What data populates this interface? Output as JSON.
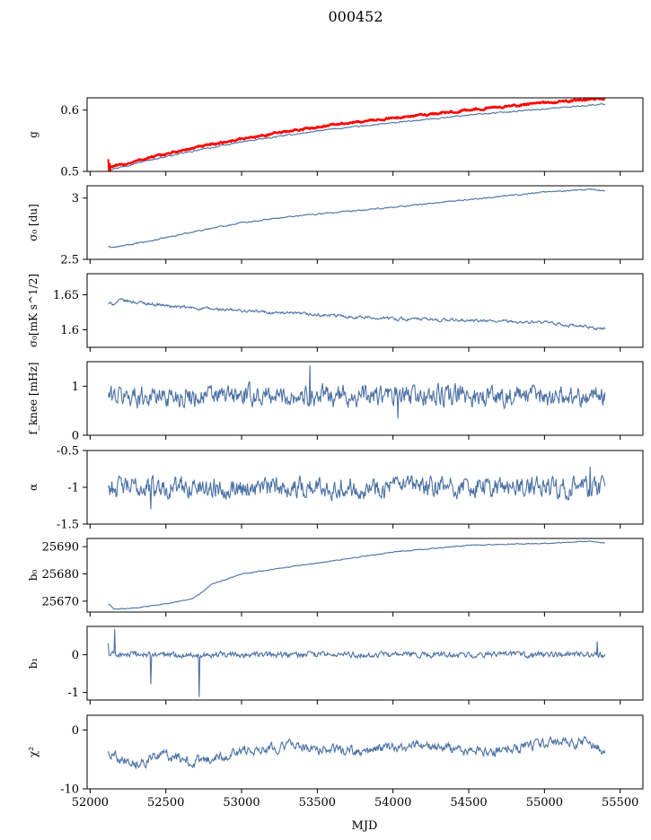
{
  "chart_data": {
    "type": "line",
    "title": "000452",
    "xlabel": "MJD",
    "xlim": [
      51980,
      55650
    ],
    "xticks": [
      52000,
      52500,
      53000,
      53500,
      54000,
      54500,
      55000,
      55500
    ],
    "x_range": [
      52120,
      55400
    ],
    "series_color": "#4c72a4",
    "overlay_color": "#ff0000",
    "panels": [
      {
        "key": "g",
        "ylabel": "g",
        "ylim": [
          0.5,
          0.62
        ],
        "yticks": [
          0.5,
          0.6
        ],
        "style": "trend",
        "points": [
          [
            52120,
            0.503
          ],
          [
            52200,
            0.507
          ],
          [
            52400,
            0.519
          ],
          [
            52700,
            0.534
          ],
          [
            53000,
            0.548
          ],
          [
            53300,
            0.559
          ],
          [
            53600,
            0.569
          ],
          [
            54000,
            0.579
          ],
          [
            54500,
            0.592
          ],
          [
            55000,
            0.602
          ],
          [
            55400,
            0.61
          ]
        ],
        "noise": 0.0008,
        "overlay": {
          "style": "trend",
          "points": [
            [
              52120,
              0.507
            ],
            [
              52200,
              0.51
            ],
            [
              52400,
              0.523
            ],
            [
              52700,
              0.539
            ],
            [
              53000,
              0.553
            ],
            [
              53300,
              0.565
            ],
            [
              53600,
              0.576
            ],
            [
              54000,
              0.587
            ],
            [
              54500,
              0.6
            ],
            [
              55000,
              0.612
            ],
            [
              55400,
              0.619
            ]
          ],
          "noise": 0.0012,
          "glitch": [
            [
              52120,
              0.52
            ],
            [
              52125,
              0.496
            ],
            [
              52130,
              0.513
            ],
            [
              52135,
              0.5
            ]
          ]
        }
      },
      {
        "key": "sigma0",
        "ylabel": "σ₀ [du]",
        "ylim": [
          2.5,
          3.1
        ],
        "yticks": [
          2.5,
          3.0
        ],
        "style": "trend",
        "points": [
          [
            52170,
            2.6
          ],
          [
            52400,
            2.65
          ],
          [
            52700,
            2.73
          ],
          [
            53000,
            2.8
          ],
          [
            53400,
            2.86
          ],
          [
            53800,
            2.9
          ],
          [
            54200,
            2.95
          ],
          [
            54600,
            3.0
          ],
          [
            55000,
            3.05
          ],
          [
            55300,
            3.07
          ],
          [
            55400,
            3.06
          ]
        ],
        "noise": 0.004
      },
      {
        "key": "sigma0_mk",
        "ylabel": "σ₀[mK s^1/2]",
        "ylim": [
          1.575,
          1.68
        ],
        "yticks": [
          1.6,
          1.65
        ],
        "style": "trend",
        "points": [
          [
            52150,
            1.637
          ],
          [
            52200,
            1.642
          ],
          [
            52600,
            1.632
          ],
          [
            53000,
            1.627
          ],
          [
            53500,
            1.621
          ],
          [
            54000,
            1.616
          ],
          [
            54500,
            1.613
          ],
          [
            55000,
            1.61
          ],
          [
            55400,
            1.601
          ]
        ],
        "noise": 0.0018
      },
      {
        "key": "fknee",
        "ylabel": "f_knee [mHz]",
        "ylim": [
          0,
          1.5
        ],
        "yticks": [
          0,
          1
        ],
        "style": "noise",
        "center": 0.8,
        "amp": 0.13,
        "points": [],
        "spikes": [
          [
            53450,
            1.42
          ],
          [
            54030,
            0.34
          ]
        ]
      },
      {
        "key": "alpha",
        "ylabel": "α",
        "ylim": [
          -1.5,
          -0.5
        ],
        "yticks": [
          -1.5,
          -1.0,
          -0.5
        ],
        "style": "noise",
        "center": -1.0,
        "amp": 0.085,
        "points": [],
        "spikes": [
          [
            52400,
            -1.3
          ],
          [
            55300,
            -0.72
          ]
        ]
      },
      {
        "key": "b0",
        "ylabel": "b₀",
        "ylim": [
          25666,
          25693
        ],
        "yticks": [
          25670,
          25680,
          25690
        ],
        "style": "trend",
        "points": [
          [
            52120,
            25669
          ],
          [
            52160,
            25667
          ],
          [
            52300,
            25667.5
          ],
          [
            52500,
            25669
          ],
          [
            52680,
            25671
          ],
          [
            52730,
            25673
          ],
          [
            52800,
            25676
          ],
          [
            53000,
            25680
          ],
          [
            53500,
            25684
          ],
          [
            54000,
            25688
          ],
          [
            54500,
            25690.5
          ],
          [
            55000,
            25691.2
          ],
          [
            55300,
            25692
          ],
          [
            55400,
            25691.3
          ]
        ],
        "noise": 0.12
      },
      {
        "key": "b1",
        "ylabel": "b₁",
        "ylim": [
          -1.2,
          0.75
        ],
        "yticks": [
          -1,
          0
        ],
        "style": "noise",
        "center": 0.0,
        "amp": 0.045,
        "points": [],
        "spikes": [
          [
            52120,
            0.3
          ],
          [
            52160,
            0.68
          ],
          [
            52400,
            -0.78
          ],
          [
            52720,
            -1.12
          ],
          [
            55350,
            0.35
          ]
        ]
      },
      {
        "key": "chi2",
        "ylabel": "χ²",
        "ylim": [
          -10,
          2.5
        ],
        "yticks": [
          -10,
          0
        ],
        "style": "trend",
        "points": [
          [
            52120,
            -3.8
          ],
          [
            52300,
            -5.5
          ],
          [
            52500,
            -4.2
          ],
          [
            52700,
            -5.5
          ],
          [
            53000,
            -3.5
          ],
          [
            53300,
            -2.5
          ],
          [
            53500,
            -3.2
          ],
          [
            53800,
            -3.8
          ],
          [
            54000,
            -2.8
          ],
          [
            54300,
            -3.0
          ],
          [
            54600,
            -3.8
          ],
          [
            55000,
            -2.2
          ],
          [
            55300,
            -2.0
          ],
          [
            55400,
            -3.8
          ]
        ],
        "noise": 0.7
      }
    ]
  }
}
